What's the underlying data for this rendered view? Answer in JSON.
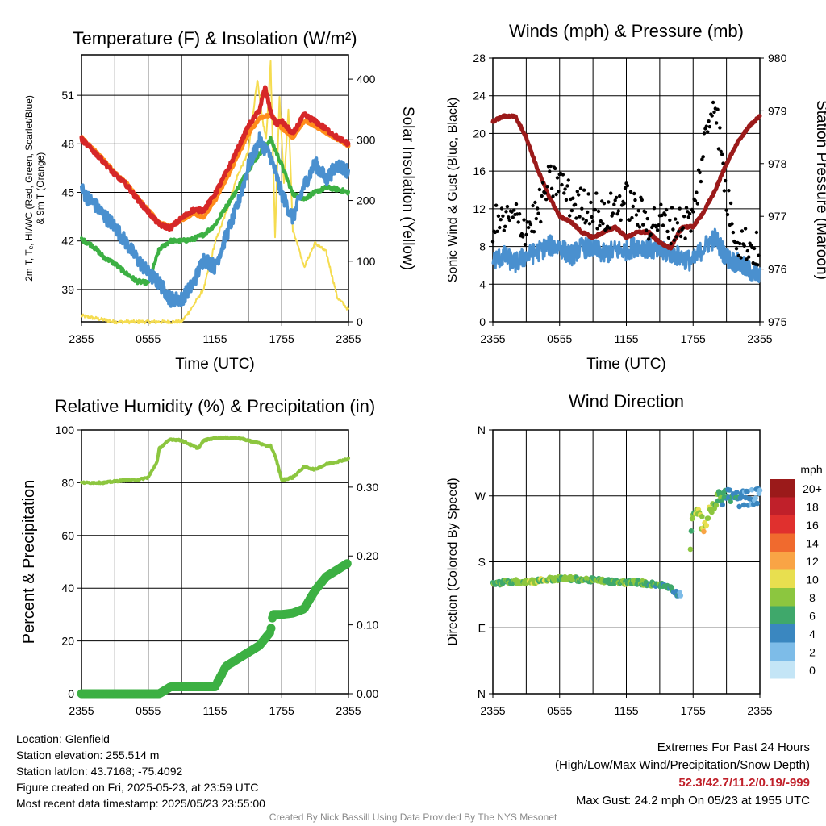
{
  "chart_data": [
    {
      "type": "line",
      "title": "Temperature (F) & Insolation (W/m²)",
      "xlabel": "Time (UTC)",
      "ylabel": "2m T, Tₑ, HI/WC (Red, Green, Scarlet/Blue) & 9m T (Orange)",
      "y2label": "Solar Insolation (Yellow)",
      "x_ticks": [
        "2355",
        "0555",
        "1155",
        "1755",
        "2355"
      ],
      "ylim": [
        37,
        53.5
      ],
      "y_ticks": [
        39,
        42,
        45,
        48,
        51
      ],
      "y2lim": [
        0,
        440
      ],
      "y2_ticks": [
        0,
        100,
        200,
        300,
        400
      ],
      "series": [
        {
          "name": "2m T",
          "color": "#d62728",
          "axis": "left",
          "x": [
            0,
            1,
            2,
            3,
            4,
            5,
            6,
            7,
            8,
            9,
            10,
            11,
            12,
            13,
            14,
            15,
            16,
            16.5,
            17,
            17.5,
            18,
            19,
            20,
            21,
            22,
            23,
            24
          ],
          "y": [
            48.3,
            47.6,
            46.9,
            46.1,
            45.5,
            44.6,
            43.8,
            43.0,
            42.8,
            43.4,
            43.9,
            43.9,
            44.9,
            46.2,
            47.6,
            49.1,
            50.1,
            51.5,
            50.0,
            49.2,
            49.4,
            48.6,
            49.8,
            49.4,
            48.9,
            48.4,
            48.0
          ]
        },
        {
          "name": "9m T",
          "color": "#ff8c1a",
          "axis": "left",
          "x": [
            0,
            1,
            2,
            3,
            4,
            5,
            6,
            7,
            8,
            9,
            10,
            11,
            12,
            13,
            14,
            15,
            16,
            17,
            18,
            19,
            20,
            21,
            22,
            23,
            24
          ],
          "y": [
            48.4,
            47.7,
            47.0,
            46.2,
            45.6,
            44.7,
            43.9,
            43.1,
            42.9,
            43.3,
            43.7,
            43.5,
            44.5,
            45.8,
            47.2,
            48.6,
            49.6,
            49.8,
            49.0,
            48.4,
            49.4,
            49.1,
            48.7,
            48.3,
            47.9
          ]
        },
        {
          "name": "Dewpoint",
          "color": "#3cb043",
          "axis": "left",
          "x": [
            0,
            1,
            2,
            3,
            4,
            5,
            6,
            7,
            8,
            9,
            10,
            11,
            12,
            13,
            14,
            15,
            16,
            17,
            18,
            19,
            20,
            21,
            22,
            23,
            24
          ],
          "y": [
            42.1,
            41.7,
            41.0,
            40.6,
            40.0,
            39.5,
            39.4,
            41.5,
            42.0,
            42.0,
            42.1,
            42.4,
            43.0,
            44.1,
            45.2,
            46.4,
            47.4,
            48.3,
            46.7,
            44.9,
            44.6,
            45.0,
            45.3,
            45.2,
            45.0
          ]
        },
        {
          "name": "HI/WC",
          "color": "#4a90cf",
          "axis": "left",
          "x": [
            0,
            0.5,
            1,
            2,
            3,
            4,
            5,
            6,
            7,
            8,
            9,
            10,
            11,
            12,
            13,
            14,
            15,
            16,
            17,
            18,
            19,
            20,
            21,
            22,
            23,
            24
          ],
          "y": [
            45.2,
            44.7,
            44.4,
            43.6,
            42.9,
            41.9,
            40.9,
            40.0,
            39.4,
            38.4,
            38.4,
            39.3,
            40.9,
            40.4,
            42.3,
            44.1,
            46.6,
            48.2,
            47.2,
            44.9,
            43.4,
            45.4,
            46.8,
            45.8,
            46.7,
            46.3
          ]
        },
        {
          "name": "Solar Insolation",
          "color": "#f5dc50",
          "axis": "right",
          "x": [
            0,
            3,
            6,
            9,
            10,
            11,
            12,
            13,
            14,
            15,
            15.8,
            16.2,
            16.6,
            17.0,
            17.4,
            17.8,
            18.2,
            18.6,
            19.0,
            19.5,
            20,
            21,
            22,
            23,
            24
          ],
          "y": [
            10,
            0,
            0,
            0,
            25,
            55,
            130,
            180,
            240,
            280,
            400,
            340,
            300,
            430,
            140,
            370,
            230,
            350,
            150,
            125,
            90,
            130,
            115,
            40,
            20
          ]
        }
      ]
    },
    {
      "type": "line",
      "title": "Winds (mph) & Pressure (mb)",
      "xlabel": "Time (UTC)",
      "ylabel": "Sonic Wind & Gust (Blue, Black)",
      "y2label": "Station Pressure (Maroon)",
      "x_ticks": [
        "2355",
        "0555",
        "1155",
        "1755",
        "2355"
      ],
      "ylim": [
        0,
        28
      ],
      "y_ticks": [
        0,
        4,
        8,
        12,
        16,
        20,
        24,
        28
      ],
      "y2lim": [
        975,
        980
      ],
      "y2_ticks": [
        975,
        976,
        977,
        978,
        979,
        980
      ],
      "series": [
        {
          "name": "Sonic Wind",
          "color": "#4a90cf",
          "axis": "left",
          "x": [
            0,
            1,
            2,
            3,
            4,
            5,
            6,
            7,
            8,
            9,
            10,
            11,
            12,
            13,
            14,
            15,
            16,
            17,
            18,
            19,
            20,
            21,
            22,
            23,
            24
          ],
          "y": [
            6.5,
            7.0,
            6.2,
            7.0,
            7.4,
            8.1,
            8.0,
            7.0,
            7.9,
            7.8,
            7.2,
            7.6,
            7.6,
            8.1,
            7.8,
            7.4,
            7.3,
            6.8,
            6.4,
            8.0,
            8.9,
            6.8,
            6.2,
            5.5,
            4.8
          ]
        },
        {
          "name": "Gust",
          "color": "#000000",
          "axis": "left",
          "x": [
            0,
            1,
            2,
            3,
            4,
            5,
            6,
            7,
            8,
            9,
            10,
            11,
            12,
            13,
            14,
            15,
            16,
            17,
            18,
            19,
            19.9,
            21,
            22,
            23,
            24
          ],
          "y": [
            10.4,
            10.6,
            11.0,
            10.0,
            11.5,
            14.6,
            15.0,
            12.8,
            12.3,
            12.4,
            10.8,
            12.4,
            12.9,
            11.6,
            10.6,
            10.8,
            10.3,
            10.5,
            11.0,
            18.8,
            24.2,
            13.0,
            8.8,
            8.1,
            7.4
          ]
        },
        {
          "name": "Station Pressure",
          "color": "#9b1a1a",
          "axis": "right",
          "x": [
            0,
            1,
            2,
            3,
            4,
            5,
            6,
            7,
            8,
            9,
            10,
            11,
            12,
            13,
            14,
            15,
            16,
            17,
            18,
            19,
            20,
            21,
            22,
            23,
            24
          ],
          "y": [
            978.8,
            978.9,
            978.9,
            978.5,
            977.9,
            977.4,
            977.0,
            976.9,
            976.7,
            976.6,
            976.7,
            976.8,
            976.6,
            976.7,
            976.7,
            976.5,
            976.4,
            976.8,
            976.8,
            977.1,
            977.5,
            978.0,
            978.4,
            978.7,
            978.9
          ]
        }
      ]
    },
    {
      "type": "line",
      "title": "Relative Humidity (%) & Precipitation (in)",
      "xlabel": "",
      "ylabel": "Percent & Precipitation",
      "x_ticks": [
        "2355",
        "0555",
        "1155",
        "1755",
        "2355"
      ],
      "ylim": [
        0,
        100
      ],
      "y_ticks": [
        0,
        20,
        40,
        60,
        80,
        100
      ],
      "y2lim": [
        0,
        0.383
      ],
      "y2_ticks": [
        "0.00",
        "0.10",
        "0.20",
        "0.30"
      ],
      "series": [
        {
          "name": "Relative Humidity",
          "color": "#8cc63f",
          "axis": "left",
          "x": [
            0,
            1,
            2,
            3,
            4,
            5,
            6,
            6.8,
            7,
            8,
            9,
            10,
            10.5,
            11,
            12,
            13,
            14,
            15,
            16,
            16.5,
            17,
            17.5,
            18,
            19,
            20,
            21,
            22,
            23,
            24
          ],
          "y": [
            80,
            80,
            80,
            80.5,
            81,
            81,
            82,
            88,
            93,
            96.5,
            96,
            94,
            93,
            96,
            97,
            97,
            97,
            96,
            95,
            94,
            94,
            89,
            81,
            82,
            86,
            85,
            87,
            88,
            89
          ]
        },
        {
          "name": "Precipitation",
          "color": "#3cb043",
          "axis": "right",
          "x": [
            0,
            3,
            6,
            7,
            8,
            9,
            10,
            12,
            13,
            14,
            15,
            16,
            17,
            17.2,
            18,
            19,
            20,
            21,
            22,
            23,
            24
          ],
          "y": [
            0.0,
            0.0,
            0.0,
            0.0,
            0.01,
            0.01,
            0.01,
            0.01,
            0.04,
            0.05,
            0.06,
            0.07,
            0.09,
            0.115,
            0.115,
            0.117,
            0.123,
            0.15,
            0.17,
            0.18,
            0.19
          ]
        }
      ]
    },
    {
      "type": "scatter",
      "title": "Wind Direction",
      "ylabel": "Direction (Colored By Speed)",
      "x_ticks": [
        "2355",
        "0555",
        "1155",
        "1755",
        "2355"
      ],
      "y_ticks": [
        "N",
        "E",
        "S",
        "W",
        "N"
      ],
      "ylim": [
        0,
        360
      ],
      "legend": {
        "title": "mph",
        "position": "right",
        "labels": [
          "20+",
          "18",
          "16",
          "14",
          "12",
          "10",
          "8",
          "6",
          "4",
          "2",
          "0"
        ],
        "colors": [
          "#9b1a1a",
          "#c0202a",
          "#e0302e",
          "#f06a2e",
          "#f9a445",
          "#e8df4f",
          "#8cc63f",
          "#3fa86b",
          "#3a87c0",
          "#7dbce8",
          "#c4e5f6"
        ]
      },
      "series": [
        {
          "name": "Direction",
          "x": [
            0,
            1,
            2,
            3,
            4,
            5,
            6,
            7,
            8,
            9,
            10,
            11,
            12,
            13,
            14,
            15,
            16,
            16.5,
            17,
            17.5,
            18,
            18.5,
            19,
            20,
            21,
            22,
            23,
            24
          ],
          "y": [
            150,
            152,
            153,
            153,
            154,
            156,
            157,
            157,
            156,
            155,
            154,
            152,
            152,
            152,
            150,
            149,
            145,
            137,
            135,
            141,
            253,
            240,
            230,
            262,
            272,
            265,
            268,
            270
          ],
          "speed": [
            6,
            7,
            7,
            8,
            8,
            8,
            8,
            7,
            7,
            7,
            7,
            6,
            8,
            7,
            6,
            6,
            5,
            4,
            3,
            6,
            7,
            9,
            10,
            8,
            5,
            4,
            3,
            2
          ]
        }
      ]
    }
  ],
  "footer": {
    "location": "Location: Glenfield",
    "elevation": "Station elevation: 255.514 m",
    "latlon": "Station lat/lon: 43.7168; -75.4092",
    "created": "Figure created on Fri, 2025-05-23, at 23:59 UTC",
    "recent": "Most recent data timestamp: 2025/05/23 23:55:00",
    "extremes_title": "Extremes For Past 24 Hours",
    "extremes_sub": "(High/Low/Max Wind/Precipitation/Snow Depth)",
    "extremes_values": "52.3/42.7/11.2/0.19/-999",
    "max_gust": "Max Gust: 24.2 mph On 05/23 at 1955 UTC",
    "credit": "Created By Nick Bassill Using Data Provided By The NYS Mesonet"
  }
}
